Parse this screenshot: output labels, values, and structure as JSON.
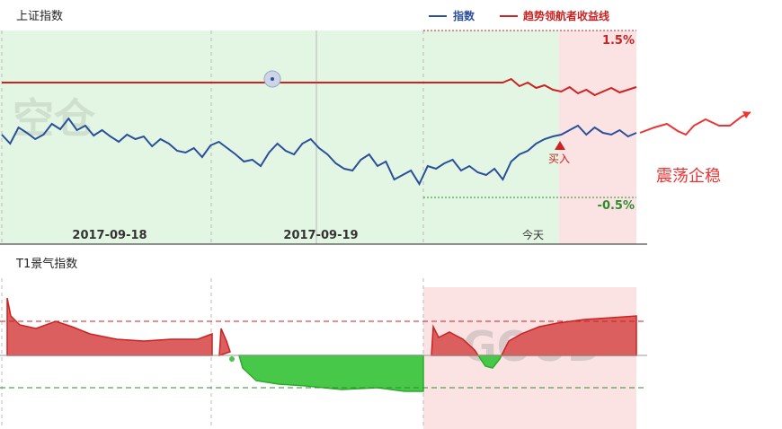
{
  "top_panel": {
    "title": "上证指数",
    "legend": [
      {
        "label": "指数",
        "color": "#2b4f9a"
      },
      {
        "label": "趋势领航者收益线",
        "color": "#cc2222"
      }
    ],
    "watermark": "空仓",
    "upper_label": "1.5%",
    "lower_label": "-0.5%",
    "buy_label": "买入",
    "side_note": "震荡企稳"
  },
  "bottom_panel": {
    "title": "T1景气指数",
    "watermark": "GOOD"
  },
  "colors": {
    "index_line": "#2b4f9a",
    "return_line": "#cc2222",
    "green_zone": "#e3f6e3",
    "pink_zone": "#fbe3e3",
    "red_fill": "#db5f5f",
    "green_fill": "#48c848",
    "upper_label": "#cc2222",
    "lower_label": "#2e8b2e"
  },
  "chart_data": [
    {
      "type": "line",
      "x_labels": [
        "2017-09-18",
        "2017-09-19",
        "今天"
      ],
      "series": [
        {
          "name": "指数",
          "values": [
            150,
            160,
            142,
            148,
            155,
            150,
            138,
            144,
            132,
            145,
            140,
            151,
            145,
            152,
            158,
            150,
            155,
            152,
            163,
            155,
            160,
            168,
            170,
            165,
            175,
            162,
            158,
            165,
            172,
            180,
            178,
            185,
            170,
            160,
            168,
            172,
            160,
            155,
            165,
            172,
            182,
            188,
            190,
            178,
            172,
            185,
            180,
            200,
            195,
            190,
            205,
            185,
            188,
            182,
            178,
            190,
            185,
            192,
            195,
            188,
            200,
            180,
            172,
            168,
            160,
            155,
            152,
            150,
            145,
            140,
            150,
            142,
            148,
            150,
            145,
            152,
            148
          ]
        },
        {
          "name": "趋势领航者收益线",
          "values": [
            92,
            92,
            92,
            92,
            92,
            92,
            92,
            92,
            92,
            92,
            92,
            92,
            92,
            92,
            92,
            92,
            92,
            92,
            92,
            92,
            92,
            92,
            92,
            92,
            92,
            92,
            92,
            92,
            92,
            92,
            92,
            92,
            92,
            92,
            92,
            92,
            92,
            92,
            92,
            92,
            92,
            92,
            92,
            92,
            92,
            92,
            92,
            92,
            92,
            92,
            92,
            92,
            92,
            92,
            92,
            92,
            92,
            92,
            92,
            92,
            92,
            88,
            96,
            92,
            98,
            95,
            100,
            102,
            97,
            104,
            100,
            106,
            102,
            98,
            103,
            100,
            97
          ]
        }
      ]
    },
    {
      "type": "area",
      "note": "景气指数",
      "series": [
        {
          "name": "",
          "values": []
        }
      ]
    }
  ]
}
